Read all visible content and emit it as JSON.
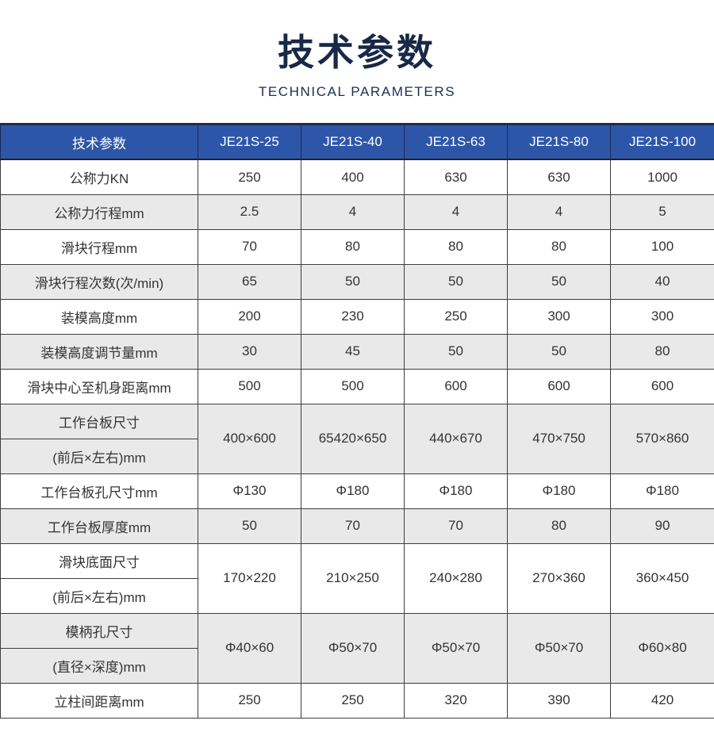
{
  "page": {
    "title": "技术参数",
    "subtitle": "TECHNICAL PARAMETERS"
  },
  "colors": {
    "title_navy": "#182847",
    "header_bg": "#2d56a8",
    "header_text": "#ffffff",
    "alt_row_bg": "#e9e9e9",
    "border": "#3d3d3d",
    "cell_text": "#333333"
  },
  "table": {
    "header": [
      "技术参数",
      "JE21S-25",
      "JE21S-40",
      "JE21S-63",
      "JE21S-80",
      "JE21S-100"
    ],
    "rows": [
      {
        "label": "公称力KN",
        "values": [
          "250",
          "400",
          "630",
          "630",
          "1000"
        ],
        "shade": false
      },
      {
        "label": "公称力行程mm",
        "values": [
          "2.5",
          "4",
          "4",
          "4",
          "5"
        ],
        "shade": true
      },
      {
        "label": "滑块行程mm",
        "values": [
          "70",
          "80",
          "80",
          "80",
          "100"
        ],
        "shade": false
      },
      {
        "label": "滑块行程次数(次/min)",
        "values": [
          "65",
          "50",
          "50",
          "50",
          "40"
        ],
        "shade": true
      },
      {
        "label": "装模高度mm",
        "values": [
          "200",
          "230",
          "250",
          "300",
          "300"
        ],
        "shade": false
      },
      {
        "label": "装模高度调节量mm",
        "values": [
          "30",
          "45",
          "50",
          "50",
          "80"
        ],
        "shade": true
      },
      {
        "label": "滑块中心至机身距离mm",
        "values": [
          "500",
          "500",
          "600",
          "600",
          "600"
        ],
        "shade": false
      },
      {
        "label": "工作台板尺寸",
        "label2": "(前后×左右)mm",
        "values": [
          "400×600",
          "65420×650",
          "440×670",
          "470×750",
          "570×860"
        ],
        "shade": true
      },
      {
        "label": "工作台板孔尺寸mm",
        "values": [
          "Φ130",
          "Φ180",
          "Φ180",
          "Φ180",
          "Φ180"
        ],
        "shade": false
      },
      {
        "label": "工作台板厚度mm",
        "values": [
          "50",
          "70",
          "70",
          "80",
          "90"
        ],
        "shade": true
      },
      {
        "label": "滑块底面尺寸",
        "label2": "(前后×左右)mm",
        "values": [
          "170×220",
          "210×250",
          "240×280",
          "270×360",
          "360×450"
        ],
        "shade": false
      },
      {
        "label": "模柄孔尺寸",
        "label2": "(直径×深度)mm",
        "values": [
          "Φ40×60",
          "Φ50×70",
          "Φ50×70",
          "Φ50×70",
          "Φ60×80"
        ],
        "shade": true
      },
      {
        "label": "立柱间距离mm",
        "values": [
          "250",
          "250",
          "320",
          "390",
          "420"
        ],
        "shade": false
      }
    ]
  }
}
